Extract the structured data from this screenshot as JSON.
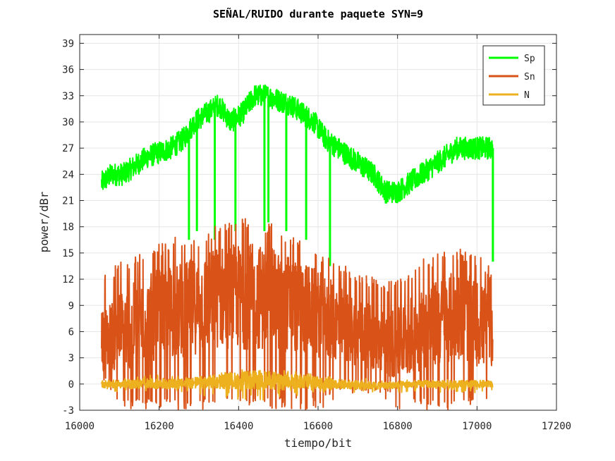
{
  "chart_data": {
    "type": "line",
    "title": "SEÑAL/RUIDO durante paquete SYN=9",
    "xlabel": "tiempo/bit",
    "ylabel": "power/dBr",
    "xlim": [
      16000,
      17200
    ],
    "ylim": [
      -3,
      40
    ],
    "x_ticks": [
      16000,
      16200,
      16400,
      16600,
      16800,
      17000,
      17200
    ],
    "y_ticks": [
      -3,
      0,
      3,
      6,
      9,
      12,
      15,
      18,
      21,
      24,
      27,
      30,
      33,
      36,
      39
    ],
    "grid": true,
    "legend_position": "top-right",
    "series": [
      {
        "name": "Sp",
        "color": "#00ff00",
        "x": [
          16055,
          16080,
          16110,
          16140,
          16170,
          16200,
          16230,
          16260,
          16290,
          16320,
          16350,
          16380,
          16410,
          16440,
          16470,
          16500,
          16530,
          16560,
          16590,
          16620,
          16650,
          16680,
          16710,
          16740,
          16770,
          16800,
          16830,
          16860,
          16890,
          16920,
          16950,
          16980,
          17010,
          17040
        ],
        "values": [
          23,
          24,
          24,
          25,
          26,
          26.5,
          27,
          28,
          30,
          31,
          32,
          30,
          31,
          33,
          33,
          32.5,
          32,
          31,
          30,
          28,
          27,
          26,
          25,
          24,
          22,
          22,
          23,
          24,
          25,
          26,
          27,
          27,
          27,
          27
        ],
        "dips": [
          {
            "x": 16275,
            "min": 16.5
          },
          {
            "x": 16295,
            "min": 17.5
          },
          {
            "x": 16340,
            "min": 16.5
          },
          {
            "x": 16392,
            "min": 17.5
          },
          {
            "x": 16465,
            "min": 17.5
          },
          {
            "x": 16475,
            "min": 18.5
          },
          {
            "x": 16520,
            "min": 17.5
          },
          {
            "x": 16570,
            "min": 16.5
          },
          {
            "x": 16630,
            "min": 13.5
          },
          {
            "x": 17040,
            "min": 14
          }
        ]
      },
      {
        "name": "Sn",
        "color": "#d95319",
        "x": [
          16055,
          16100,
          16150,
          16200,
          16250,
          16300,
          16350,
          16400,
          16450,
          16500,
          16550,
          16600,
          16650,
          16700,
          16750,
          16800,
          16850,
          16900,
          16950,
          17000,
          17040
        ],
        "values": [
          5,
          6,
          7,
          8,
          8.5,
          9,
          10,
          10,
          10,
          9.5,
          9,
          8,
          7,
          6,
          5,
          4.5,
          6,
          7,
          8,
          7,
          6
        ],
        "upper_envelope": [
          13,
          14,
          15,
          16,
          17,
          17,
          18.5,
          19,
          19,
          18,
          17,
          15,
          14,
          13,
          12,
          12,
          14,
          15,
          15.5,
          15,
          13
        ],
        "lower_envelope": [
          1,
          -3,
          -3,
          -3,
          -3,
          -3,
          -3,
          -3,
          -3,
          -3,
          -3,
          -3,
          -2,
          -1,
          -1,
          -3,
          -3,
          -3,
          -3,
          -3,
          -3
        ]
      },
      {
        "name": "N",
        "color": "#edb120",
        "x": [
          16055,
          16150,
          16250,
          16350,
          16450,
          16550,
          16650,
          16750,
          16850,
          16950,
          17040
        ],
        "values": [
          0,
          0,
          0,
          0.3,
          0.5,
          0.3,
          0,
          -0.2,
          0,
          0,
          0
        ],
        "upper_envelope": [
          0.5,
          1,
          1,
          1.5,
          2,
          1.5,
          1,
          0.5,
          0.5,
          0.5,
          0.5
        ],
        "lower_envelope": [
          -1,
          -1,
          -1,
          -1.5,
          -2,
          -1.5,
          -1,
          -1,
          -1,
          -1,
          -1
        ]
      }
    ]
  }
}
